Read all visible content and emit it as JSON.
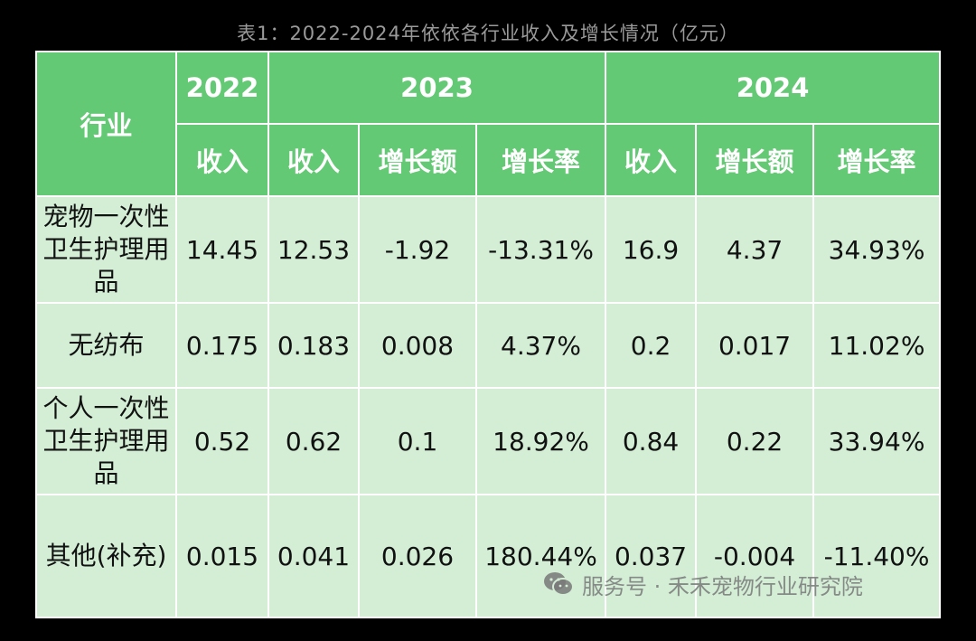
{
  "caption": "表1：2022-2024年依依各行业收入及增长情况（亿元）",
  "header": {
    "industry": "行业",
    "years": [
      "2022",
      "2023",
      "2024"
    ],
    "sub": [
      "收入",
      "收入",
      "增长额",
      "增长率",
      "收入",
      "增长额",
      "增长率"
    ]
  },
  "rows": [
    {
      "label": "宠物一次性卫生护理用品",
      "cells": [
        "14.45",
        "12.53",
        "-1.92",
        "-13.31%",
        "16.9",
        "4.37",
        "34.93%"
      ]
    },
    {
      "label": "无纺布",
      "cells": [
        "0.175",
        "0.183",
        "0.008",
        "4.37%",
        "0.2",
        "0.017",
        "11.02%"
      ]
    },
    {
      "label": "个人一次性卫生护理用品",
      "cells": [
        "0.52",
        "0.62",
        "0.1",
        "18.92%",
        "0.84",
        "0.22",
        "33.94%"
      ]
    },
    {
      "label": "其他(补充)",
      "cells": [
        "0.015",
        "0.041",
        "0.026",
        "180.44%",
        "0.037",
        "-0.004",
        "-11.40%"
      ]
    }
  ],
  "watermark": "服务号 · 禾禾宠物行业研究院",
  "colors": {
    "header_bg": "#63c974",
    "body_bg": "#d4eed6",
    "background": "#000000"
  }
}
